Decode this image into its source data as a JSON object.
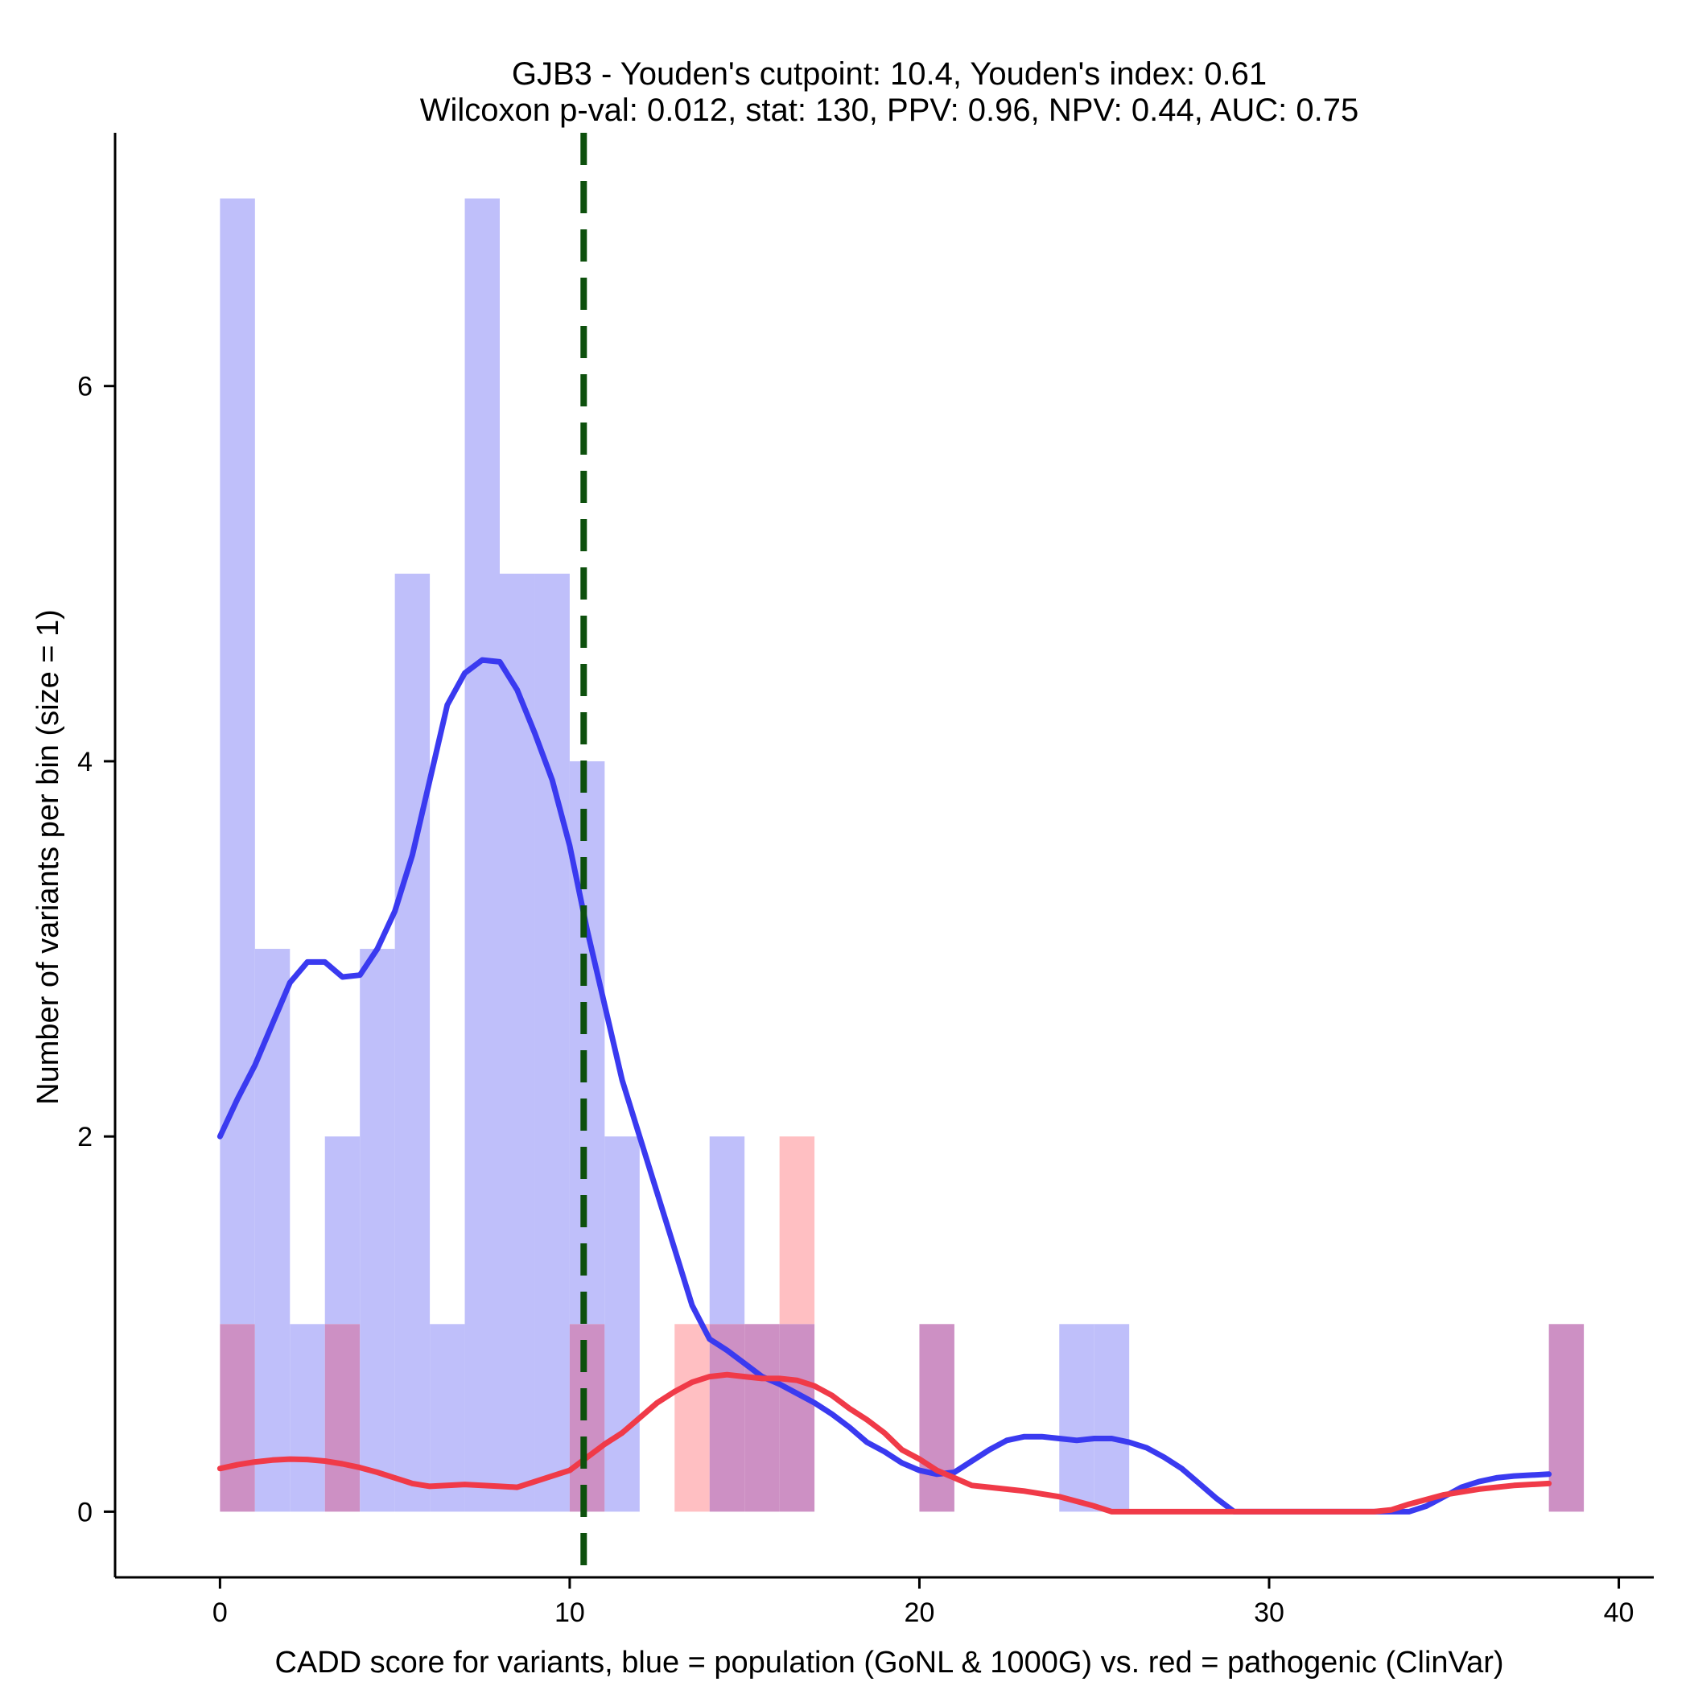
{
  "chart_data": {
    "type": "bar",
    "title": "GJB3 - Youden's cutpoint: 10.4, Youden's index: 0.61",
    "subtitle": "Wilcoxon p-val: 0.012, stat: 130, PPV: 0.96, NPV: 0.44, AUC: 0.75",
    "xlabel": "CADD score for variants, blue = population (GoNL & 1000G) vs. red = pathogenic (ClinVar)",
    "ylabel": "Number of variants per bin (size = 1)",
    "xlim": [
      -3,
      41
    ],
    "ylim": [
      -0.35,
      7.35
    ],
    "x_ticks": [
      0,
      10,
      20,
      30,
      40
    ],
    "y_ticks": [
      0,
      2,
      4,
      6
    ],
    "bin_size": 1,
    "cutpoint": 10.4,
    "colors": {
      "population_bar": "#bfbffa",
      "pathogenic_bar": "#ffbfc2",
      "overlap_bar": "#cd90c4",
      "population_line": "#3a3af0",
      "pathogenic_line": "#f03a48",
      "cutpoint_line": "#0d500d"
    },
    "series": [
      {
        "name": "population (GoNL & 1000G)",
        "bins": [
          [
            0,
            7
          ],
          [
            1,
            3
          ],
          [
            2,
            1
          ],
          [
            3,
            2
          ],
          [
            4,
            3
          ],
          [
            5,
            5
          ],
          [
            6,
            1
          ],
          [
            7,
            7
          ],
          [
            8,
            5
          ],
          [
            9,
            5
          ],
          [
            10,
            4
          ],
          [
            11,
            2
          ],
          [
            14,
            2
          ],
          [
            15,
            1
          ],
          [
            16,
            1
          ],
          [
            20,
            1
          ],
          [
            24,
            1
          ],
          [
            25,
            1
          ],
          [
            38,
            1
          ]
        ],
        "density": [
          [
            0,
            2.0
          ],
          [
            0.5,
            2.2
          ],
          [
            1,
            2.38
          ],
          [
            1.5,
            2.6
          ],
          [
            2,
            2.82
          ],
          [
            2.5,
            2.93
          ],
          [
            3,
            2.93
          ],
          [
            3.5,
            2.85
          ],
          [
            4,
            2.86
          ],
          [
            4.5,
            3.0
          ],
          [
            5,
            3.2
          ],
          [
            5.5,
            3.5
          ],
          [
            6,
            3.9
          ],
          [
            6.5,
            4.3
          ],
          [
            7,
            4.47
          ],
          [
            7.5,
            4.54
          ],
          [
            8,
            4.53
          ],
          [
            8.5,
            4.38
          ],
          [
            9,
            4.15
          ],
          [
            9.5,
            3.9
          ],
          [
            10,
            3.55
          ],
          [
            10.5,
            3.1
          ],
          [
            11,
            2.7
          ],
          [
            11.5,
            2.3
          ],
          [
            12,
            2.0
          ],
          [
            12.5,
            1.7
          ],
          [
            13,
            1.4
          ],
          [
            13.5,
            1.1
          ],
          [
            14,
            0.92
          ],
          [
            14.5,
            0.86
          ],
          [
            15,
            0.79
          ],
          [
            15.5,
            0.72
          ],
          [
            16,
            0.68
          ],
          [
            16.5,
            0.63
          ],
          [
            17,
            0.58
          ],
          [
            17.5,
            0.52
          ],
          [
            18,
            0.45
          ],
          [
            18.5,
            0.37
          ],
          [
            19,
            0.32
          ],
          [
            19.5,
            0.26
          ],
          [
            20,
            0.22
          ],
          [
            20.5,
            0.2
          ],
          [
            21,
            0.21
          ],
          [
            21.5,
            0.27
          ],
          [
            22,
            0.33
          ],
          [
            22.5,
            0.38
          ],
          [
            23,
            0.4
          ],
          [
            23.5,
            0.4
          ],
          [
            24,
            0.39
          ],
          [
            24.5,
            0.38
          ],
          [
            25,
            0.39
          ],
          [
            25.5,
            0.39
          ],
          [
            26,
            0.37
          ],
          [
            26.5,
            0.34
          ],
          [
            27,
            0.29
          ],
          [
            27.5,
            0.23
          ],
          [
            28,
            0.15
          ],
          [
            28.5,
            0.07
          ],
          [
            29,
            0.0
          ],
          [
            30,
            0.0
          ],
          [
            31,
            0.0
          ],
          [
            32,
            0.0
          ],
          [
            33,
            0.0
          ],
          [
            34,
            0.0
          ],
          [
            34.5,
            0.03
          ],
          [
            35,
            0.08
          ],
          [
            35.5,
            0.13
          ],
          [
            36,
            0.16
          ],
          [
            36.5,
            0.18
          ],
          [
            37,
            0.19
          ],
          [
            38,
            0.2
          ]
        ]
      },
      {
        "name": "pathogenic (ClinVar)",
        "bins": [
          [
            0,
            1
          ],
          [
            3,
            1
          ],
          [
            10,
            1
          ],
          [
            13,
            1
          ],
          [
            14,
            1
          ],
          [
            15,
            1
          ],
          [
            16,
            2
          ],
          [
            20,
            1
          ],
          [
            38,
            1
          ]
        ],
        "density": [
          [
            0,
            0.23
          ],
          [
            0.5,
            0.25
          ],
          [
            1,
            0.265
          ],
          [
            1.5,
            0.275
          ],
          [
            2,
            0.28
          ],
          [
            2.5,
            0.278
          ],
          [
            3,
            0.27
          ],
          [
            3.5,
            0.255
          ],
          [
            4,
            0.235
          ],
          [
            4.5,
            0.21
          ],
          [
            5,
            0.18
          ],
          [
            5.5,
            0.15
          ],
          [
            6,
            0.135
          ],
          [
            6.5,
            0.14
          ],
          [
            7,
            0.145
          ],
          [
            7.5,
            0.14
          ],
          [
            8,
            0.135
          ],
          [
            8.5,
            0.13
          ],
          [
            9,
            0.16
          ],
          [
            9.5,
            0.19
          ],
          [
            10,
            0.22
          ],
          [
            10.5,
            0.29
          ],
          [
            11,
            0.36
          ],
          [
            11.5,
            0.42
          ],
          [
            12,
            0.5
          ],
          [
            12.5,
            0.58
          ],
          [
            13,
            0.64
          ],
          [
            13.5,
            0.69
          ],
          [
            14,
            0.72
          ],
          [
            14.5,
            0.73
          ],
          [
            15,
            0.72
          ],
          [
            15.5,
            0.71
          ],
          [
            16,
            0.71
          ],
          [
            16.5,
            0.7
          ],
          [
            17,
            0.67
          ],
          [
            17.5,
            0.62
          ],
          [
            18,
            0.55
          ],
          [
            18.5,
            0.49
          ],
          [
            19,
            0.42
          ],
          [
            19.5,
            0.33
          ],
          [
            20,
            0.28
          ],
          [
            20.5,
            0.22
          ],
          [
            21,
            0.18
          ],
          [
            21.5,
            0.14
          ],
          [
            22,
            0.13
          ],
          [
            23,
            0.11
          ],
          [
            24,
            0.08
          ],
          [
            25,
            0.03
          ],
          [
            25.5,
            0.0
          ],
          [
            26,
            0.0
          ],
          [
            27,
            0.0
          ],
          [
            28,
            0.0
          ],
          [
            29,
            0.0
          ],
          [
            30,
            0.0
          ],
          [
            31,
            0.0
          ],
          [
            32,
            0.0
          ],
          [
            33,
            0.0
          ],
          [
            33.5,
            0.01
          ],
          [
            34,
            0.04
          ],
          [
            35,
            0.09
          ],
          [
            36,
            0.12
          ],
          [
            37,
            0.14
          ],
          [
            38,
            0.15
          ]
        ]
      }
    ]
  }
}
